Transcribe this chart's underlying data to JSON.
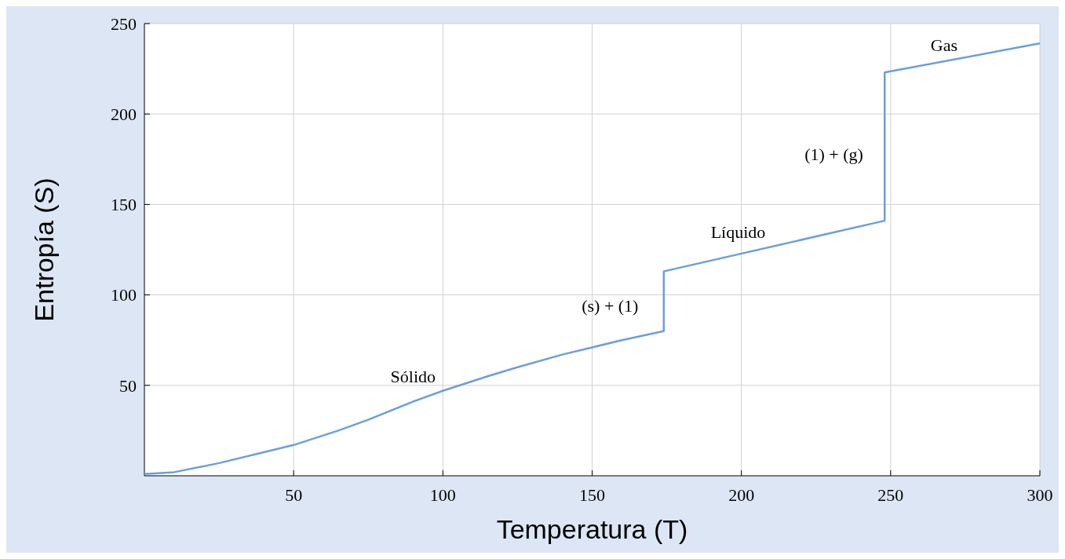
{
  "chart_data": {
    "type": "line",
    "xlabel": "Temperatura (T)",
    "ylabel": "Entropía (S)",
    "xlim": [
      0,
      300
    ],
    "ylim": [
      0,
      250
    ],
    "xticks": [
      50,
      100,
      150,
      200,
      250,
      300
    ],
    "yticks": [
      50,
      100,
      150,
      200,
      250
    ],
    "grid": true,
    "series": [
      {
        "color": "#6a9fdc",
        "x": [
          0,
          10,
          25,
          40,
          50,
          65,
          75,
          90,
          100,
          115,
          125,
          140,
          150,
          160,
          174,
          174,
          248,
          248,
          300
        ],
        "values": [
          1,
          2,
          7,
          13,
          17,
          25,
          31,
          41,
          47,
          55,
          60,
          67,
          71,
          75,
          80,
          113,
          141,
          223,
          239
        ]
      }
    ],
    "annotations": [
      "Sólido",
      "(s) + (1)",
      "Líquido",
      "(1) + (g)",
      "Gas"
    ]
  }
}
